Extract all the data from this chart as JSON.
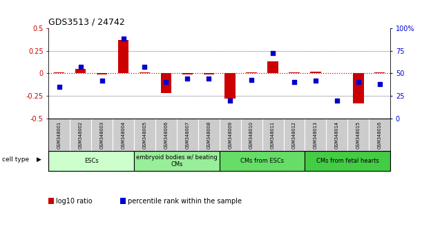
{
  "title": "GDS3513 / 24742",
  "samples": [
    "GSM348001",
    "GSM348002",
    "GSM348003",
    "GSM348004",
    "GSM348005",
    "GSM348006",
    "GSM348007",
    "GSM348008",
    "GSM348009",
    "GSM348010",
    "GSM348011",
    "GSM348012",
    "GSM348013",
    "GSM348014",
    "GSM348015",
    "GSM348016"
  ],
  "log10_ratio": [
    0.01,
    0.05,
    -0.01,
    0.37,
    0.01,
    -0.22,
    -0.01,
    -0.01,
    -0.28,
    0.01,
    0.13,
    0.01,
    0.02,
    0.0,
    -0.33,
    0.01
  ],
  "percentile_rank": [
    35,
    57,
    42,
    88,
    57,
    40,
    44,
    44,
    20,
    43,
    72,
    40,
    42,
    20,
    40,
    38
  ],
  "bar_color": "#cc0000",
  "dot_color": "#0000cc",
  "zero_line_color": "#cc0000",
  "cell_type_groups": [
    {
      "label": "ESCs",
      "start": 0,
      "end": 3,
      "color": "#ccffcc"
    },
    {
      "label": "embryoid bodies w/ beating\nCMs",
      "start": 4,
      "end": 7,
      "color": "#99ee99"
    },
    {
      "label": "CMs from ESCs",
      "start": 8,
      "end": 11,
      "color": "#66dd66"
    },
    {
      "label": "CMs from fetal hearts",
      "start": 12,
      "end": 15,
      "color": "#44cc44"
    }
  ],
  "ylim_left": [
    -0.5,
    0.5
  ],
  "ylim_right": [
    0,
    100
  ],
  "yticks_left": [
    -0.5,
    -0.25,
    0.0,
    0.25,
    0.5
  ],
  "ytick_labels_left": [
    "-0.5",
    "-0.25",
    "0",
    "0.25",
    "0.5"
  ],
  "yticks_right": [
    0,
    25,
    50,
    75,
    100
  ],
  "ytick_labels_right": [
    "0",
    "25",
    "50",
    "75",
    "100%"
  ],
  "legend_ratio_label": "log10 ratio",
  "legend_pct_label": "percentile rank within the sample",
  "background_color": "#ffffff",
  "plot_bg_color": "#ffffff",
  "label_bg_color": "#cccccc",
  "cell_type_label": "cell type"
}
